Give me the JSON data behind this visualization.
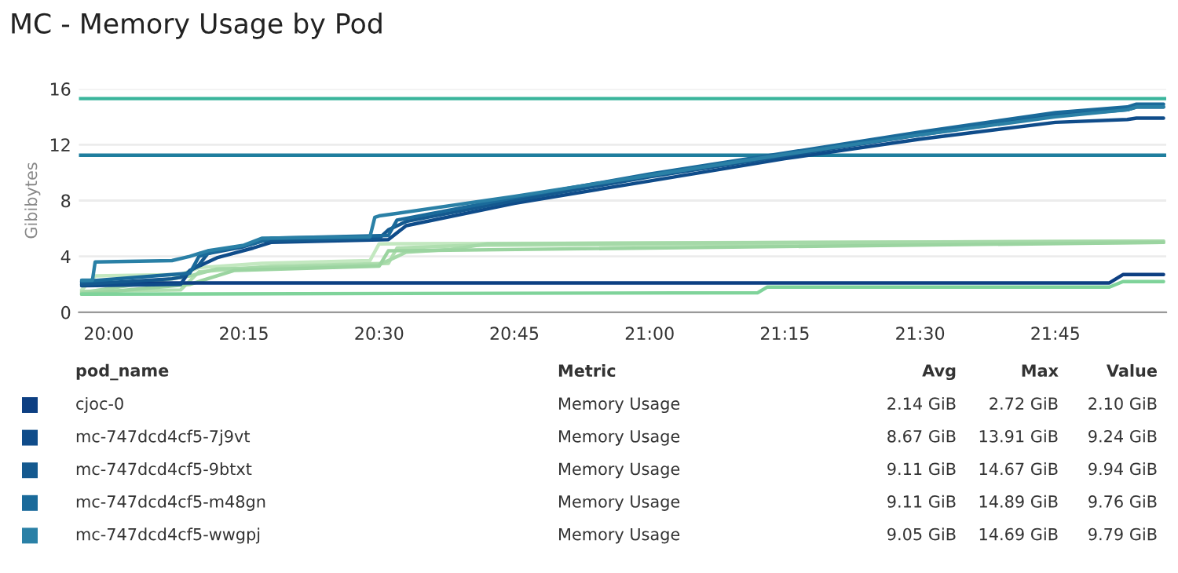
{
  "chart_data": {
    "type": "line",
    "title": "MC - Memory Usage by Pod",
    "ylabel": "Gibibytes",
    "xlim": [
      19.945,
      21.955
    ],
    "ylim": [
      0,
      16
    ],
    "xticks": [
      {
        "value": 20,
        "label": "20:00"
      },
      {
        "value": 20.25,
        "label": "20:15"
      },
      {
        "value": 20.5,
        "label": "20:30"
      },
      {
        "value": 20.75,
        "label": "20:45"
      },
      {
        "value": 21,
        "label": "21:00"
      },
      {
        "value": 21.25,
        "label": "21:15"
      },
      {
        "value": 21.5,
        "label": "21:30"
      },
      {
        "value": 21.75,
        "label": "21:45"
      }
    ],
    "yticks": [
      0,
      4,
      8,
      12,
      16
    ],
    "grid": "y",
    "legend": "bottom",
    "ref_lines": [
      {
        "axis": "y",
        "value": 15.3,
        "label": null,
        "color": "#3ab59c"
      },
      {
        "axis": "y",
        "value": 11.25,
        "label": null,
        "color": "#1f7e9e"
      }
    ],
    "series": [
      {
        "color": "#c3e8c0",
        "x": [
          19.95,
          19.975,
          20.133,
          20.167,
          20.283,
          20.483,
          20.5,
          21.95
        ],
        "values": [
          1.6,
          2.6,
          2.7,
          3.2,
          3.5,
          3.7,
          4.9,
          5.1
        ]
      },
      {
        "color": "#b0dfb0",
        "x": [
          19.95,
          20.133,
          20.167,
          20.3,
          20.517,
          20.533,
          20.667,
          21.95
        ],
        "values": [
          1.5,
          1.6,
          2.9,
          3.3,
          3.5,
          4.6,
          4.8,
          5.0
        ]
      },
      {
        "color": "#a5d9a8",
        "x": [
          19.95,
          20.15,
          20.2,
          20.5,
          20.55,
          20.633,
          20.7,
          21.95
        ],
        "values": [
          1.4,
          2.6,
          3.1,
          3.4,
          4.3,
          4.5,
          4.9,
          5.1
        ]
      },
      {
        "color": "#9bd4a0",
        "x": [
          19.95,
          20.15,
          20.233,
          20.5,
          20.517,
          21.95
        ],
        "values": [
          1.3,
          2.0,
          3.0,
          3.3,
          4.4,
          5.0
        ]
      },
      {
        "color": "#7fd39a",
        "x": [
          19.95,
          21.2,
          21.217,
          21.85,
          21.875,
          21.95
        ],
        "values": [
          1.3,
          1.4,
          1.8,
          1.8,
          2.2,
          2.2
        ]
      },
      {
        "name": "cjoc-0",
        "color": "#0d3f82",
        "x": [
          19.95,
          21.25,
          21.85,
          21.875,
          21.95
        ],
        "values": [
          2.1,
          2.1,
          2.1,
          2.7,
          2.7
        ]
      },
      {
        "name": "mc-747dcd4cf5-7j9vt",
        "color": "#0f4c8a",
        "x": [
          19.95,
          20.133,
          20.15,
          20.2,
          20.267,
          20.3,
          20.517,
          20.55,
          20.75,
          21.0,
          21.25,
          21.5,
          21.75,
          21.883,
          21.9,
          21.95
        ],
        "values": [
          1.9,
          2.0,
          3.0,
          3.9,
          4.6,
          5.0,
          5.2,
          6.2,
          7.8,
          9.4,
          11.0,
          12.4,
          13.6,
          13.8,
          13.9,
          13.9
        ]
      },
      {
        "name": "mc-747dcd4cf5-9btxt",
        "color": "#14598f",
        "x": [
          19.95,
          20.117,
          20.133,
          20.167,
          20.183,
          20.25,
          20.283,
          20.5,
          20.517,
          20.55,
          20.75,
          21.0,
          21.25,
          21.5,
          21.75,
          21.883,
          21.9,
          21.95
        ],
        "values": [
          2.0,
          2.4,
          2.5,
          3.4,
          4.2,
          4.7,
          5.1,
          5.3,
          5.9,
          6.5,
          8.0,
          9.7,
          11.2,
          12.7,
          14.1,
          14.5,
          14.7,
          14.7
        ]
      },
      {
        "name": "mc-747dcd4cf5-m48gn",
        "color": "#1a6a9a",
        "x": [
          19.95,
          20.15,
          20.167,
          20.2,
          20.267,
          20.3,
          20.517,
          20.533,
          20.75,
          21.0,
          21.25,
          21.5,
          21.75,
          21.883,
          21.9,
          21.95
        ],
        "values": [
          2.2,
          2.8,
          4.0,
          4.4,
          4.9,
          5.3,
          5.5,
          6.6,
          8.2,
          9.9,
          11.4,
          12.9,
          14.3,
          14.7,
          14.9,
          14.9
        ]
      },
      {
        "name": "mc-747dcd4cf5-wwgpj",
        "color": "#2a80a6",
        "x": [
          19.95,
          19.97,
          19.975,
          20.117,
          20.15,
          20.183,
          20.25,
          20.283,
          20.483,
          20.492,
          20.5,
          20.75,
          21.0,
          21.25,
          21.5,
          21.75,
          21.883,
          21.9,
          21.95
        ],
        "values": [
          2.3,
          2.3,
          3.6,
          3.7,
          4.0,
          4.4,
          4.8,
          5.3,
          5.4,
          6.8,
          6.9,
          8.3,
          9.8,
          11.3,
          12.7,
          14.0,
          14.5,
          14.7,
          14.7
        ]
      }
    ],
    "annotations": [
      "pod_name",
      "Metric",
      "Avg",
      "Max",
      "Value",
      "Memory Usage",
      "2.14 GiB",
      "2.72 GiB",
      "2.10 GiB",
      "Memory Usage",
      "8.67 GiB",
      "13.91 GiB",
      "9.24 GiB",
      "Memory Usage",
      "9.11 GiB",
      "14.67 GiB",
      "9.94 GiB",
      "Memory Usage",
      "9.11 GiB",
      "14.89 GiB",
      "9.76 GiB",
      "Memory Usage",
      "9.05 GiB",
      "14.69 GiB",
      "9.79 GiB"
    ]
  }
}
